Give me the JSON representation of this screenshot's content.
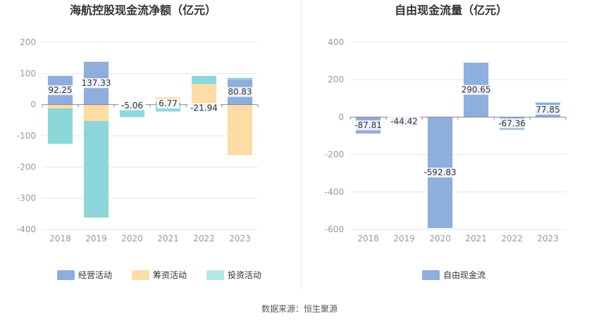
{
  "source_note": "数据来源：恒生聚源",
  "colors": {
    "operating": "#8eaedc",
    "financing": "#fddca5",
    "investing": "#8dd7da",
    "fcf": "#8eaedc",
    "investing_legend": "#b7e6e8",
    "grid": "#e6e6e6",
    "axis": "#999999",
    "title": "#333333"
  },
  "chart_data": [
    {
      "type": "bar",
      "stacked": true,
      "title": "海航控股现金流净额（亿元）",
      "categories": [
        "2018",
        "2019",
        "2020",
        "2021",
        "2022",
        "2023"
      ],
      "ylim": [
        -400,
        200
      ],
      "yticks": [
        200,
        100,
        0,
        -100,
        -200,
        -300,
        -400
      ],
      "series": [
        {
          "name": "经营活动",
          "values": [
            92.25,
            137.33,
            -5.06,
            6.77,
            -21.94,
            80.83
          ]
        },
        {
          "name": "筹资活动",
          "values": [
            -12,
            -52,
            3,
            17,
            66,
            -162
          ]
        },
        {
          "name": "投资活动",
          "values": [
            -114,
            -310,
            -35,
            -22,
            26,
            5
          ]
        }
      ],
      "data_labels": [
        "92.25",
        "137.33",
        "-5.06",
        "6.77",
        "-21.94",
        "80.83"
      ],
      "legend": "bottom"
    },
    {
      "type": "bar",
      "title": "自由现金流量（亿元）",
      "categories": [
        "2018",
        "2019",
        "2020",
        "2021",
        "2022",
        "2023"
      ],
      "ylim": [
        -600,
        400
      ],
      "yticks": [
        400,
        200,
        0,
        -200,
        -400,
        -600
      ],
      "series": [
        {
          "name": "自由现金流",
          "values": [
            -87.81,
            -44.42,
            -592.83,
            290.65,
            -67.36,
            77.85
          ]
        }
      ],
      "data_labels": [
        "-87.81",
        "-44.42",
        "-592.83",
        "290.65",
        "-67.36",
        "77.85"
      ],
      "legend": "bottom"
    }
  ]
}
